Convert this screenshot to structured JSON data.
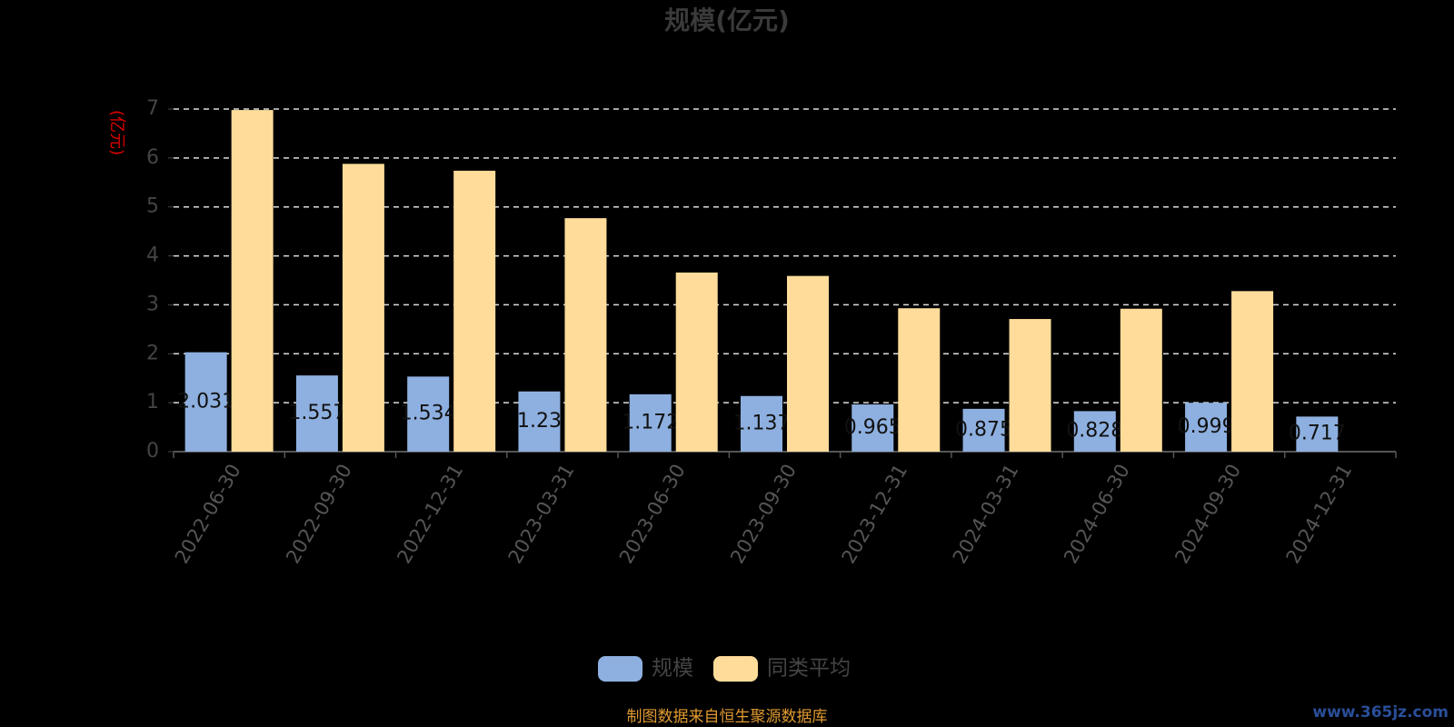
{
  "chart_data": {
    "type": "bar",
    "title": "规模(亿元)",
    "y_label": "(亿元)",
    "categories": [
      "2022-06-30",
      "2022-09-30",
      "2022-12-31",
      "2023-03-31",
      "2023-06-30",
      "2023-09-30",
      "2023-12-31",
      "2024-03-31",
      "2024-06-30",
      "2024-09-30",
      "2024-12-31"
    ],
    "series": [
      {
        "name": "规模",
        "color": "#8eb0e0",
        "values": [
          2.031,
          1.557,
          1.534,
          1.23,
          1.172,
          1.137,
          0.965,
          0.875,
          0.828,
          0.999,
          0.717
        ]
      },
      {
        "name": "同类平均",
        "color": "#ffdc9a",
        "values": [
          6.98,
          5.88,
          5.74,
          4.77,
          3.66,
          3.59,
          2.93,
          2.71,
          2.92,
          3.28,
          null
        ]
      }
    ],
    "ylim": [
      0,
      7
    ],
    "yticks": [
      0,
      1,
      2,
      3,
      4,
      5,
      6,
      7
    ],
    "grid": true,
    "legend": "bottom",
    "source": "制图数据来自恒生聚源数据库",
    "watermark": "www.365jz.com"
  }
}
